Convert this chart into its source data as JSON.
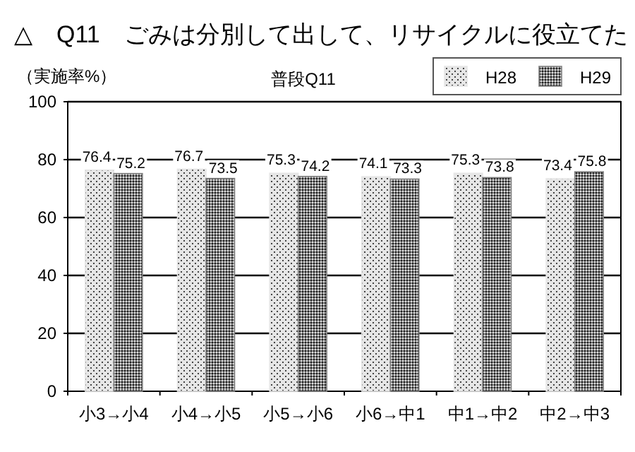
{
  "chart_data": {
    "type": "bar",
    "title": "△　Q11　ごみは分別して出して、リサイクルに役立てた",
    "subtitle": "普段Q11",
    "ylabel": "（実施率%）",
    "categories": [
      "小3→小4",
      "小4→小5",
      "小5→小6",
      "小6→中1",
      "中1→中2",
      "中2→中3"
    ],
    "series": [
      {
        "name": "H28",
        "color": "#e6e6e6",
        "values": [
          76.4,
          76.7,
          75.3,
          74.1,
          75.3,
          73.4
        ]
      },
      {
        "name": "H29",
        "color": "#808080",
        "values": [
          75.2,
          73.5,
          74.2,
          73.3,
          73.8,
          75.8
        ]
      }
    ],
    "ylim": [
      0,
      100
    ],
    "yticks": [
      0,
      20,
      40,
      60,
      80,
      100
    ],
    "grid": "y",
    "legend": "top right",
    "data_labels": true
  }
}
